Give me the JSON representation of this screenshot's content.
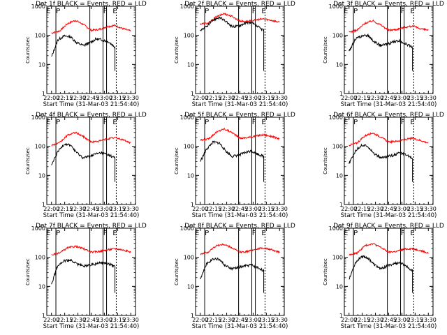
{
  "figure": {
    "xlabel": "Start Time (31-Mar-03 21:54:40)",
    "ylabel": "Counts/sec"
  },
  "chart_data": {
    "type": "line",
    "y_scale": "log",
    "ylim": [
      1,
      1000
    ],
    "y_ticks": [
      "1",
      "10",
      "100",
      "1000"
    ],
    "x_ticks": [
      "22:00",
      "22:15",
      "22:30",
      "22:45",
      "23:00",
      "23:15",
      "23:30"
    ],
    "colors": {
      "events": "#000000",
      "lld": "#ff0000",
      "axes": "#000000"
    },
    "panels": [
      {
        "title": "Det 1f BLACK = Events, RED = LLD",
        "markers": [
          "E",
          "P",
          "F",
          "E"
        ],
        "events": [
          18,
          70,
          95,
          90,
          55,
          45,
          55,
          75,
          70,
          60,
          40
        ],
        "lld": [
          120,
          140,
          250,
          330,
          240,
          150,
          160,
          200,
          220,
          170,
          140
        ]
      },
      {
        "title": "Det 2f BLACK = Events, RED = LLD",
        "markers": [
          "E",
          "P",
          "F",
          "E"
        ],
        "events": [
          150,
          200,
          330,
          420,
          300,
          200,
          210,
          260,
          280,
          200,
          150
        ],
        "lld": [
          250,
          260,
          430,
          560,
          450,
          310,
          300,
          340,
          370,
          330,
          280
        ]
      },
      {
        "title": "Det 3f BLACK = Events, RED = LLD",
        "markers": [
          "E",
          "P",
          "F",
          "E"
        ],
        "events": [
          28,
          75,
          95,
          100,
          60,
          45,
          50,
          60,
          65,
          50,
          40
        ],
        "lld": [
          130,
          150,
          260,
          320,
          230,
          150,
          160,
          190,
          210,
          170,
          150
        ]
      },
      {
        "title": "Det 4f BLACK = Events, RED = LLD",
        "markers": [
          "E",
          "P",
          "F",
          "E"
        ],
        "events": [
          22,
          65,
          120,
          110,
          60,
          40,
          45,
          55,
          60,
          50,
          40
        ],
        "lld": [
          110,
          130,
          240,
          300,
          220,
          140,
          150,
          180,
          200,
          170,
          130
        ]
      },
      {
        "title": "Det 5f BLACK = Events, RED = LLD",
        "markers": [
          "E",
          "P",
          "F",
          "E"
        ],
        "events": [
          30,
          80,
          140,
          130,
          70,
          45,
          50,
          60,
          70,
          55,
          45
        ],
        "lld": [
          160,
          180,
          300,
          400,
          300,
          190,
          200,
          230,
          250,
          220,
          180
        ]
      },
      {
        "title": "Det 6f BLACK = Events, RED = LLD",
        "markers": [
          "E",
          "P",
          "F",
          "E"
        ],
        "events": [
          25,
          70,
          110,
          100,
          55,
          40,
          45,
          50,
          60,
          50,
          40
        ],
        "lld": [
          110,
          130,
          230,
          290,
          210,
          140,
          150,
          170,
          190,
          160,
          130
        ]
      },
      {
        "title": "Det 7f BLACK = Events, RED = LLD",
        "markers": [
          "E",
          "P",
          "F",
          "E"
        ],
        "events": [
          12,
          55,
          75,
          80,
          60,
          50,
          55,
          60,
          65,
          60,
          50
        ],
        "lld": [
          120,
          140,
          210,
          240,
          200,
          150,
          160,
          180,
          200,
          180,
          150
        ]
      },
      {
        "title": "Det 8f BLACK = Events, RED = LLD",
        "markers": [
          "E",
          "P",
          "F",
          "E"
        ],
        "events": [
          18,
          60,
          90,
          85,
          50,
          40,
          45,
          50,
          55,
          45,
          35
        ],
        "lld": [
          130,
          150,
          250,
          280,
          210,
          150,
          160,
          190,
          210,
          180,
          150
        ]
      },
      {
        "title": "Det 9f BLACK = Events, RED = LLD",
        "markers": [
          "E",
          "P",
          "F",
          "E"
        ],
        "events": [
          18,
          65,
          110,
          95,
          55,
          40,
          50,
          60,
          65,
          50,
          35
        ],
        "lld": [
          120,
          140,
          250,
          300,
          220,
          150,
          160,
          190,
          200,
          170,
          140
        ]
      }
    ]
  }
}
